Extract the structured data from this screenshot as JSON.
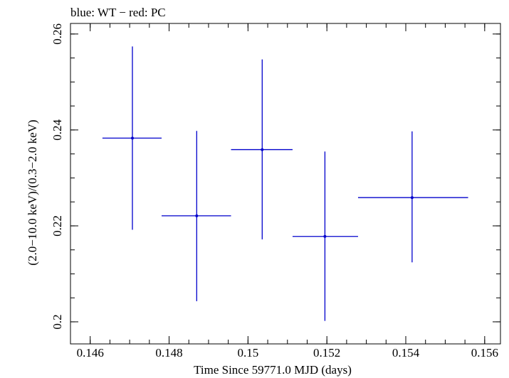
{
  "chart_data": {
    "type": "scatter",
    "title": "blue: WT − red: PC",
    "xlabel": "Time Since 59771.0 MJD (days)",
    "ylabel": "(2.0−10.0 keV)/(0.3−2.0 keV)",
    "xlim": [
      0.1455,
      0.1564
    ],
    "ylim": [
      0.1954,
      0.2622
    ],
    "x_ticks": [
      {
        "value": 0.146,
        "label": "0.146"
      },
      {
        "value": 0.148,
        "label": "0.148"
      },
      {
        "value": 0.15,
        "label": "0.15"
      },
      {
        "value": 0.152,
        "label": "0.152"
      },
      {
        "value": 0.154,
        "label": "0.154"
      },
      {
        "value": 0.156,
        "label": "0.156"
      }
    ],
    "y_ticks": [
      {
        "value": 0.2,
        "label": "0.2"
      },
      {
        "value": 0.22,
        "label": "0.22"
      },
      {
        "value": 0.24,
        "label": "0.24"
      },
      {
        "value": 0.26,
        "label": "0.26"
      }
    ],
    "x_minor_step": 0.0005,
    "y_minor_step": 0.005,
    "series": [
      {
        "name": "WT",
        "color": "#0000cc",
        "points": [
          {
            "x": 0.14707,
            "y": 0.2383,
            "xerr_low": 0.14631,
            "xerr_high": 0.14781,
            "yerr_low": 0.2192,
            "yerr_high": 0.2574
          },
          {
            "x": 0.1487,
            "y": 0.2221,
            "xerr_low": 0.14781,
            "xerr_high": 0.14957,
            "yerr_low": 0.2043,
            "yerr_high": 0.2398
          },
          {
            "x": 0.15036,
            "y": 0.2359,
            "xerr_low": 0.14957,
            "xerr_high": 0.15113,
            "yerr_low": 0.2172,
            "yerr_high": 0.2547
          },
          {
            "x": 0.15195,
            "y": 0.2178,
            "xerr_low": 0.15113,
            "xerr_high": 0.15279,
            "yerr_low": 0.2002,
            "yerr_high": 0.2355
          },
          {
            "x": 0.15416,
            "y": 0.2259,
            "xerr_low": 0.15279,
            "xerr_high": 0.15558,
            "yerr_low": 0.2124,
            "yerr_high": 0.2397
          }
        ]
      }
    ]
  }
}
